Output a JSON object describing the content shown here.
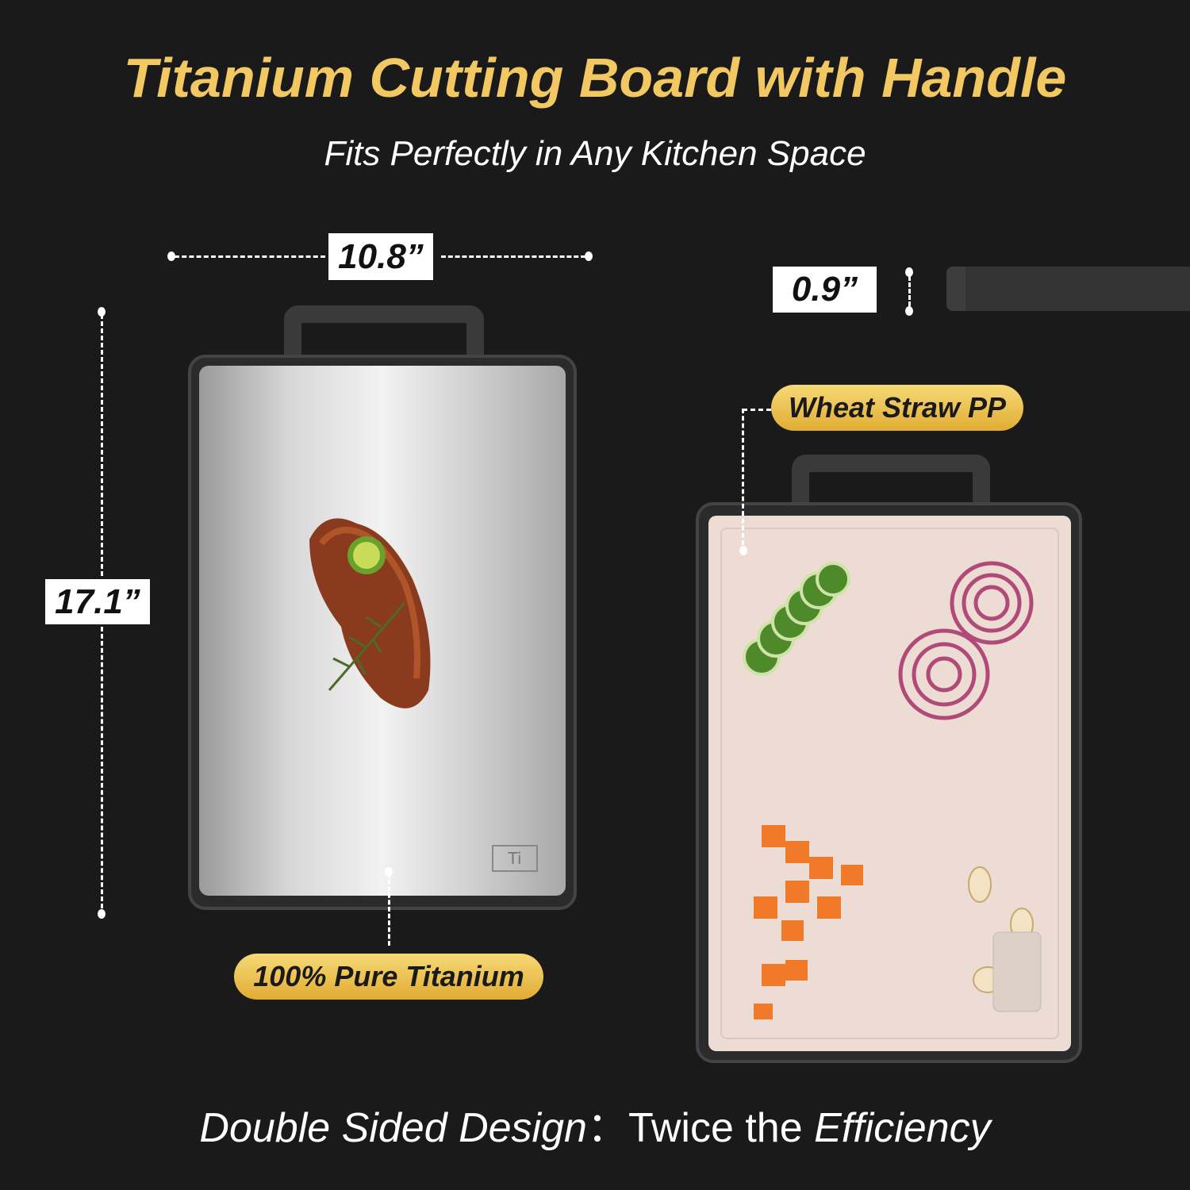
{
  "header": {
    "title": "Titanium Cutting Board with Handle",
    "subtitle": "Fits Perfectly in Any Kitchen Space"
  },
  "dimensions": {
    "width": "10.8”",
    "height": "17.1”",
    "thickness": "0.9”"
  },
  "labels": {
    "titanium_side": "100% Pure Titanium",
    "wheat_side": "Wheat Straw PP",
    "ti_mark": "Ti"
  },
  "footer": {
    "part1": "Double Sided Design",
    "separator": "：",
    "part2": "Twice the ",
    "part3": "Efficiency"
  },
  "colors": {
    "background": "#1a1a1a",
    "accent_gold": "#f2c862"
  }
}
